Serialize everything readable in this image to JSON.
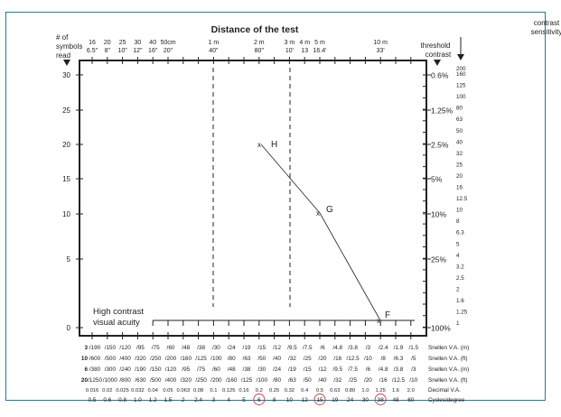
{
  "chart_data": {
    "type": "line",
    "title": "Distance of the test",
    "ylabel_left": "# of symbols read",
    "ylabel_right_inner": "threshold contrast",
    "ylabel_right_outer": "contrast sensitivity",
    "left_y_ticks": [
      "30",
      "25",
      "20",
      "15",
      "10",
      "5",
      "0"
    ],
    "right_contrast_ticks": [
      "0.6%",
      "1.25%",
      "2.5%",
      "5%",
      "10%",
      "25%",
      "100%"
    ],
    "sensitivity_ticks": [
      "200",
      "160",
      "125",
      "100",
      "80",
      "63",
      "50",
      "40",
      "32",
      "25",
      "20",
      "16",
      "12.5",
      "10",
      "8",
      "6.3",
      "5",
      "4",
      "3.2",
      "2.5",
      "2",
      "1.6",
      "1.25",
      "1"
    ],
    "top_distance_labels": [
      {
        "m": "16",
        "ft": "6.5\""
      },
      {
        "m": "20",
        "ft": "8\""
      },
      {
        "m": "25",
        "ft": "10\""
      },
      {
        "m": "30",
        "ft": "12\""
      },
      {
        "m": "40",
        "ft": "16\""
      },
      {
        "m": "50cm",
        "ft": "20\""
      },
      {
        "m": "1 m",
        "ft": "40\""
      },
      {
        "m": "2 m",
        "ft": "80\""
      },
      {
        "m": "3 m",
        "ft": "10'"
      },
      {
        "m": "4 m",
        "ft": "13"
      },
      {
        "m": "5 m",
        "ft": "16.4'"
      },
      {
        "m": "10 m",
        "ft": "33'"
      }
    ],
    "table_rows": [
      {
        "label": "Snellen V.A. (m)",
        "prefix": "3",
        "values": [
          "/190",
          "/150",
          "/120",
          "/95",
          "/75",
          "/60",
          "/48",
          "/38",
          "/30",
          "/24",
          "/19",
          "/15",
          "/12",
          "/9.5",
          "/7.5",
          "/6",
          "/4.8",
          "/3.8",
          "/3",
          "/2.4",
          "/1.9",
          "/1.5"
        ]
      },
      {
        "label": "Snellen V.A. (ft)",
        "prefix": "10",
        "values": [
          "/600",
          "/500",
          "/400",
          "/320",
          "/250",
          "/200",
          "/160",
          "/125",
          "/100",
          "/80",
          "/63",
          "/50",
          "/40",
          "/32",
          "/25",
          "/20",
          "/16",
          "/12.5",
          "/10",
          "/8",
          "/6.3",
          "/5"
        ]
      },
      {
        "label": "Snellen V.A. (m)",
        "prefix": "6",
        "values": [
          "/380",
          "/300",
          "/240",
          "/190",
          "/150",
          "/120",
          "/95",
          "/75",
          "/60",
          "/48",
          "/38",
          "/30",
          "/24",
          "/19",
          "/15",
          "/12",
          "/9.5",
          "/7.5",
          "/6",
          "/4.8",
          "/3.8",
          "/3"
        ]
      },
      {
        "label": "Snellen V.A. (ft)",
        "prefix": "20",
        "values": [
          "/1250",
          "/1000",
          "/800",
          "/630",
          "/500",
          "/400",
          "/320",
          "/250",
          "/200",
          "/160",
          "/125",
          "/100",
          "/80",
          "/63",
          "/50",
          "/40",
          "/32",
          "/25",
          "/20",
          "/16",
          "/12.5",
          "/10"
        ]
      },
      {
        "label": "Decimal V.A.",
        "prefix": "",
        "values": [
          "0.016",
          "0.02",
          "0.025",
          "0.032",
          "0.04",
          "0.05",
          "0.063",
          "0.08",
          "0.1",
          "0.125",
          "0.16",
          "0.2",
          "0.25",
          "0.32",
          "0.4",
          "0.5",
          "0.63",
          "0.80",
          "1.0",
          "1.25",
          "1.6",
          "2.0"
        ]
      },
      {
        "label": "Cycles/degree",
        "prefix": "",
        "values": [
          "0.5",
          "0.6",
          "0.8",
          "1.0",
          "1.2",
          "1.5",
          "2",
          "2.4",
          "3",
          "4",
          "5",
          "6",
          "8",
          "10",
          "12",
          "15",
          "19",
          "24",
          "30",
          "38",
          "48",
          "60"
        ]
      }
    ],
    "circled_cycles": [
      "6",
      "15",
      "38"
    ],
    "series": [
      {
        "name": "contrast sensitivity curve",
        "points": [
          {
            "label": "H",
            "cpd": 6,
            "symbols": 20,
            "threshold_contrast": "2.5%",
            "sensitivity": 40
          },
          {
            "label": "G",
            "cpd": 15,
            "symbols": 10,
            "threshold_contrast": "10%",
            "sensitivity": 10
          },
          {
            "label": "F",
            "cpd": 38,
            "symbols": 0,
            "threshold_contrast": "100%",
            "sensitivity": 1
          }
        ]
      }
    ],
    "dashed_verticals_at_distance": [
      "1 m",
      "3 m"
    ],
    "annotation": "High contrast visual acuity"
  },
  "labels": {
    "title": "Distance of the test",
    "left_axis_1": "# of",
    "left_axis_2": "symbols",
    "left_axis_3": "read",
    "cs_1": "contrast",
    "cs_2": "sensitivity",
    "tc_1": "threshold",
    "tc_2": "contrast",
    "hcva_1": "High contrast",
    "hcva_2": "visual acuity",
    "pt_h": "H",
    "pt_g": "G",
    "pt_f": "F"
  }
}
